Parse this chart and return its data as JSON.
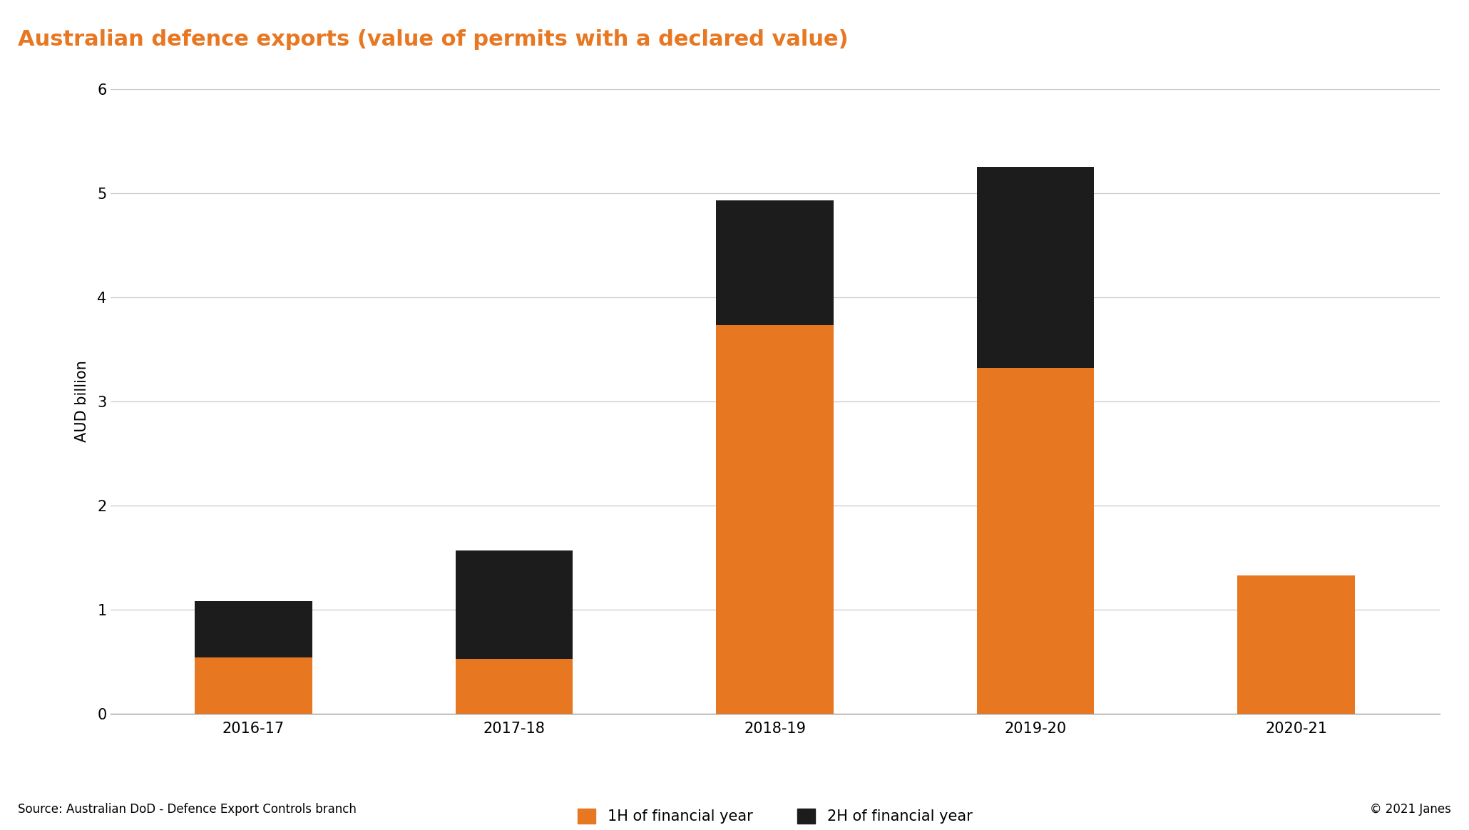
{
  "categories": [
    "2016-17",
    "2017-18",
    "2018-19",
    "2019-20",
    "2020-21"
  ],
  "h1_values": [
    0.54,
    0.53,
    3.73,
    3.32,
    1.33
  ],
  "h2_values": [
    0.54,
    1.04,
    1.2,
    1.93,
    0.0
  ],
  "h1_color": "#E87722",
  "h2_color": "#1C1C1C",
  "title": "Australian defence exports (value of permits with a declared value)",
  "title_color": "#E87722",
  "title_bg_color": "#1C1C1C",
  "ylabel": "AUD billion",
  "ylim": [
    0,
    6
  ],
  "yticks": [
    0,
    1,
    2,
    3,
    4,
    5,
    6
  ],
  "legend_h1": "1H of financial year",
  "legend_h2": "2H of financial year",
  "source_text": "Source: Australian DoD - Defence Export Controls branch",
  "copyright_text": "© 2021 Janes",
  "bg_color": "#FFFFFF",
  "plot_bg_color": "#FFFFFF",
  "grid_color": "#C8C8C8",
  "bar_width": 0.45,
  "title_fontsize": 22,
  "axis_fontsize": 15,
  "tick_fontsize": 15,
  "legend_fontsize": 15,
  "source_fontsize": 12
}
